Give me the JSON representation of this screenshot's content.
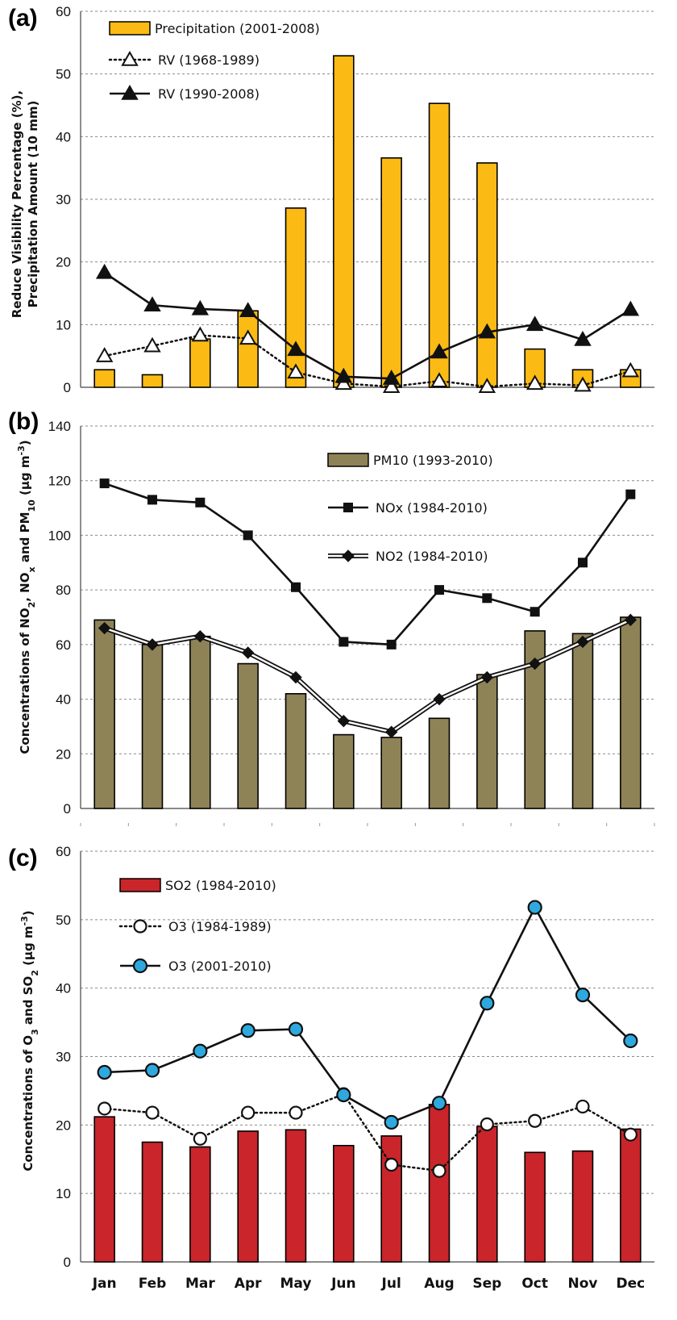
{
  "chart_data": [
    {
      "panel_label": "(a)",
      "type": "bar+line",
      "categories": [
        "Jan",
        "Feb",
        "Mar",
        "Apr",
        "May",
        "Jun",
        "Jul",
        "Aug",
        "Sep",
        "Oct",
        "Nov",
        "Dec"
      ],
      "ylabel_line1": "Reduce Visibility Percentage (%),",
      "ylabel_line2": "Precipitation Amount (10 mm)",
      "ylim": [
        0,
        60
      ],
      "yticks": [
        0,
        10,
        20,
        30,
        40,
        50,
        60
      ],
      "grid": true,
      "legend_position": "top-left",
      "bars": {
        "name": "Precipitation (2001-2008)",
        "color": "#FBBB14",
        "values": [
          2.8,
          2.0,
          7.7,
          12.2,
          28.6,
          52.9,
          36.6,
          45.3,
          35.8,
          6.1,
          2.8,
          2.8
        ]
      },
      "lines": [
        {
          "name": "RV (1968-1989)",
          "style": "dotted",
          "marker": "triangle-open",
          "values": [
            5.0,
            6.6,
            8.3,
            7.8,
            2.4,
            0.6,
            0.1,
            1.0,
            0.1,
            0.6,
            0.3,
            2.6
          ]
        },
        {
          "name": "RV (1990-2008)",
          "style": "solid",
          "marker": "triangle-filled",
          "values": [
            18.3,
            13.1,
            12.5,
            12.2,
            6.0,
            1.7,
            1.4,
            5.6,
            8.8,
            10.0,
            7.6,
            12.4
          ]
        }
      ]
    },
    {
      "panel_label": "(b)",
      "type": "bar+line",
      "categories": [
        "Jan",
        "Feb",
        "Mar",
        "Apr",
        "May",
        "Jun",
        "Jul",
        "Aug",
        "Sep",
        "Oct",
        "Nov",
        "Dec"
      ],
      "ylabel_pre": "Concentrations of NO",
      "ylabel_sub1": "2",
      "ylabel_mid1": ", NO",
      "ylabel_sub2": "x",
      "ylabel_mid2": " and PM",
      "ylabel_sub3": "10",
      "ylabel_mid3": " (μg m",
      "ylabel_sup": "-3",
      "ylabel_post": ")",
      "ylim": [
        0,
        140
      ],
      "yticks": [
        0,
        20,
        40,
        60,
        80,
        100,
        120,
        140
      ],
      "grid": true,
      "legend_position": "top-right",
      "bars": {
        "name": "PM10 (1993-2010)",
        "color": "#8E8357",
        "values": [
          69,
          60,
          63,
          53,
          42,
          27,
          26,
          33,
          49,
          65,
          64,
          70
        ]
      },
      "lines": [
        {
          "name": "NOx (1984-2010)",
          "style": "solid",
          "marker": "square",
          "values": [
            119,
            113,
            112,
            100,
            81,
            61,
            60,
            80,
            77,
            72,
            90,
            115
          ]
        },
        {
          "name": "NO2 (1984-2010)",
          "style": "double",
          "marker": "diamond",
          "values": [
            66,
            60,
            63,
            57,
            48,
            32,
            28,
            40,
            48,
            53,
            61,
            69
          ]
        }
      ]
    },
    {
      "panel_label": "(c)",
      "type": "bar+line",
      "categories": [
        "Jan",
        "Feb",
        "Mar",
        "Apr",
        "May",
        "Jun",
        "Jul",
        "Aug",
        "Sep",
        "Oct",
        "Nov",
        "Dec"
      ],
      "ylabel_pre": "Concentrations of O",
      "ylabel_sub1": "3",
      "ylabel_mid1": " and SO",
      "ylabel_sub2": "2",
      "ylabel_mid2": " (μg m",
      "ylabel_sup": "-3",
      "ylabel_post": ")",
      "ylim": [
        0,
        60
      ],
      "yticks": [
        0,
        10,
        20,
        30,
        40,
        50,
        60
      ],
      "grid": true,
      "legend_position": "top-left",
      "bars": {
        "name": "SO2 (1984-2010)",
        "color": "#C9252B",
        "values": [
          21.2,
          17.5,
          16.8,
          19.1,
          19.3,
          17.0,
          18.4,
          23.0,
          19.8,
          16.0,
          16.2,
          19.4
        ]
      },
      "lines": [
        {
          "name": "O3 (1984-1989)",
          "style": "dotted",
          "marker": "circle-open",
          "values": [
            22.4,
            21.8,
            18.0,
            21.8,
            21.8,
            24.5,
            14.2,
            13.3,
            20.1,
            20.6,
            22.7,
            18.6
          ]
        },
        {
          "name": "O3 (2001-2010)",
          "style": "solid",
          "marker": "circle-blue",
          "values": [
            27.7,
            28.0,
            30.8,
            33.8,
            34.0,
            24.4,
            20.4,
            23.2,
            37.8,
            51.8,
            39.0,
            32.3
          ]
        }
      ]
    }
  ]
}
